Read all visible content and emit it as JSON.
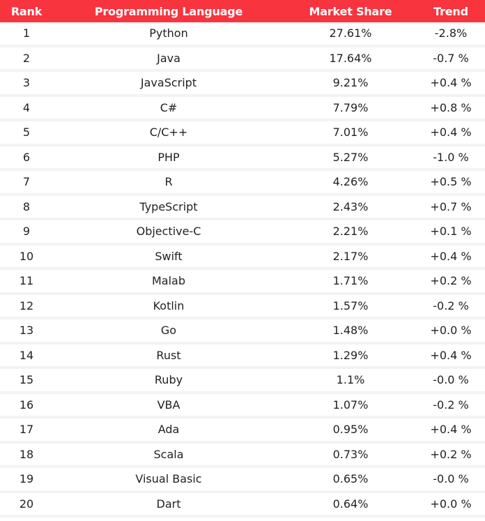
{
  "colors": {
    "header_bg": "#f8343f",
    "header_text": "#ffffff",
    "row_separator": "#f3f3f3",
    "body_text": "#222222"
  },
  "headers": {
    "rank": "Rank",
    "language": "Programming Language",
    "share": "Market Share",
    "trend": "Trend"
  },
  "rows": [
    {
      "rank": "1",
      "language": "Python",
      "share": "27.61%",
      "trend": "-2.8%"
    },
    {
      "rank": "2",
      "language": "Java",
      "share": "17.64%",
      "trend": "-0.7 %"
    },
    {
      "rank": "3",
      "language": "JavaScript",
      "share": "9.21%",
      "trend": "+0.4 %"
    },
    {
      "rank": "4",
      "language": "C#",
      "share": "7.79%",
      "trend": "+0.8 %"
    },
    {
      "rank": "5",
      "language": "C/C++",
      "share": "7.01%",
      "trend": "+0.4 %"
    },
    {
      "rank": "6",
      "language": "PHP",
      "share": "5.27%",
      "trend": "-1.0 %"
    },
    {
      "rank": "7",
      "language": "R",
      "share": "4.26%",
      "trend": "+0.5 %"
    },
    {
      "rank": "8",
      "language": "TypeScript",
      "share": "2.43%",
      "trend": "+0.7 %"
    },
    {
      "rank": "9",
      "language": "Objective-C",
      "share": "2.21%",
      "trend": "+0.1 %"
    },
    {
      "rank": "10",
      "language": "Swift",
      "share": "2.17%",
      "trend": "+0.4 %"
    },
    {
      "rank": "11",
      "language": "Malab",
      "share": "1.71%",
      "trend": "+0.2 %"
    },
    {
      "rank": "12",
      "language": "Kotlin",
      "share": "1.57%",
      "trend": "-0.2 %"
    },
    {
      "rank": "13",
      "language": "Go",
      "share": "1.48%",
      "trend": "+0.0 %"
    },
    {
      "rank": "14",
      "language": "Rust",
      "share": "1.29%",
      "trend": "+0.4 %"
    },
    {
      "rank": "15",
      "language": "Ruby",
      "share": "1.1%",
      "trend": "-0.0 %"
    },
    {
      "rank": "16",
      "language": "VBA",
      "share": "1.07%",
      "trend": "-0.2 %"
    },
    {
      "rank": "17",
      "language": "Ada",
      "share": "0.95%",
      "trend": "+0.4 %"
    },
    {
      "rank": "18",
      "language": "Scala",
      "share": "0.73%",
      "trend": "+0.2 %"
    },
    {
      "rank": "19",
      "language": "Visual Basic",
      "share": "0.65%",
      "trend": "-0.0 %"
    },
    {
      "rank": "20",
      "language": "Dart",
      "share": "0.64%",
      "trend": "+0.0 %"
    }
  ]
}
